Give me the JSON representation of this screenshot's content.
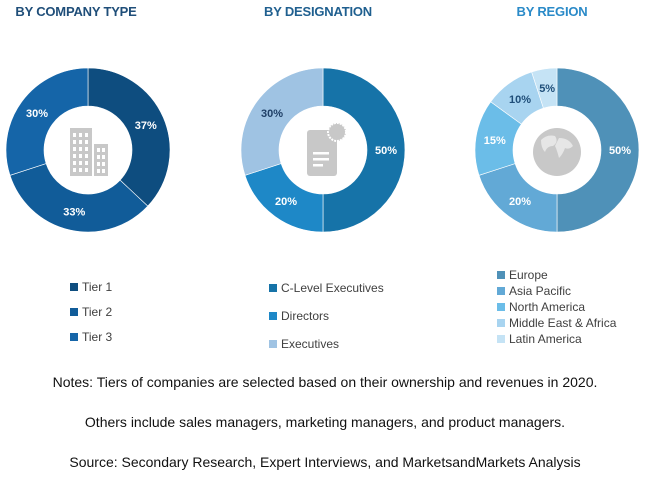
{
  "chart_data": [
    {
      "type": "pie",
      "variant": "donut",
      "title": "BY COMPANY TYPE",
      "title_color": "#1f4e79",
      "center_icon": "building-icon",
      "categories": [
        "Tier 1",
        "Tier 2",
        "Tier 3"
      ],
      "values": [
        37,
        33,
        30
      ],
      "labels": [
        "37%",
        "33%",
        "30%"
      ],
      "colors": [
        "#0e4d7f",
        "#115c99",
        "#1565a8"
      ],
      "label_colors": [
        "#ffffff",
        "#ffffff",
        "#ffffff"
      ],
      "legend_position": "bottom"
    },
    {
      "type": "pie",
      "variant": "donut",
      "title": "BY DESIGNATION",
      "title_color": "#1f5f8f",
      "center_icon": "certificate-document-icon",
      "categories": [
        "C-Level Executives",
        "Directors",
        "Executives"
      ],
      "values": [
        50,
        20,
        30
      ],
      "labels": [
        "50%",
        "20%",
        "30%"
      ],
      "colors": [
        "#1673a8",
        "#1e88c7",
        "#9fc3e3"
      ],
      "label_colors": [
        "#ffffff",
        "#ffffff",
        "#1f3f66"
      ],
      "legend_position": "bottom"
    },
    {
      "type": "pie",
      "variant": "donut",
      "title": "BY REGION",
      "title_color": "#2a8ac8",
      "center_icon": "globe-icon",
      "categories": [
        "Europe",
        "Asia Pacific",
        "North America",
        "Middle East & Africa",
        "Latin America"
      ],
      "values": [
        50,
        20,
        15,
        10,
        5
      ],
      "labels": [
        "50%",
        "20%",
        "15%",
        "10%",
        "5%"
      ],
      "colors": [
        "#4f91b8",
        "#62a9d6",
        "#6bbde8",
        "#a8d4f0",
        "#c5e3f5"
      ],
      "label_colors": [
        "#ffffff",
        "#ffffff",
        "#ffffff",
        "#1f4e79",
        "#1f4e79"
      ],
      "legend_position": "bottom"
    }
  ],
  "notes": [
    "Notes: Tiers of companies are selected based on their ownership and revenues in 2020.",
    "Others include sales managers, marketing managers, and product managers.",
    "Source: Secondary Research, Expert Interviews, and MarketsandMarkets Analysis"
  ]
}
